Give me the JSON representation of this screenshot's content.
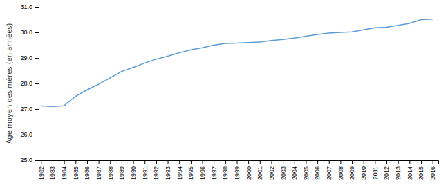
{
  "chart_data": {
    "type": "line",
    "ylabel": "Age moyen des mères (en années)",
    "x": [
      1982,
      1983,
      1984,
      1985,
      1986,
      1987,
      1988,
      1989,
      1990,
      1991,
      1992,
      1993,
      1994,
      1995,
      1996,
      1997,
      1998,
      1999,
      2000,
      2001,
      2002,
      2003,
      2004,
      2005,
      2006,
      2007,
      2008,
      2009,
      2010,
      2011,
      2012,
      2013,
      2014,
      2015,
      2016
    ],
    "values": [
      27.12,
      27.1,
      27.13,
      27.5,
      27.75,
      27.97,
      28.22,
      28.47,
      28.63,
      28.8,
      28.95,
      29.07,
      29.2,
      29.32,
      29.4,
      29.5,
      29.57,
      29.58,
      29.6,
      29.62,
      29.68,
      29.72,
      29.78,
      29.85,
      29.92,
      29.97,
      30.0,
      30.02,
      30.1,
      30.18,
      30.2,
      30.28,
      30.35,
      30.5,
      30.52
    ],
    "color": "#5B9BD5",
    "xlim": [
      1981.8,
      2016.5
    ],
    "xticks": [
      1982,
      1983,
      1984,
      1985,
      1986,
      1987,
      1988,
      1989,
      1990,
      1991,
      1992,
      1993,
      1994,
      1995,
      1996,
      1997,
      1998,
      1999,
      2000,
      2001,
      2002,
      2003,
      2004,
      2005,
      2006,
      2007,
      2008,
      2009,
      2010,
      2011,
      2012,
      2013,
      2014,
      2015,
      2016
    ],
    "ylim": [
      25.0,
      31.0
    ],
    "yticks": [
      {
        "value": 25.0,
        "label": "25.0"
      },
      {
        "value": 26.0,
        "label": "26.0"
      },
      {
        "value": 27.0,
        "label": "27.0"
      },
      {
        "value": 28.0,
        "label": "28.0"
      },
      {
        "value": 29.0,
        "label": "29.0"
      },
      {
        "value": 30.0,
        "label": "30.0"
      },
      {
        "value": 31.0,
        "label": "31.0"
      }
    ],
    "grid": false
  }
}
